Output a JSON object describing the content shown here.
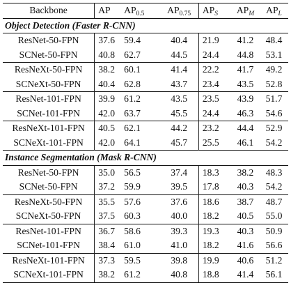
{
  "header": {
    "backbone": "Backbone",
    "ap": "AP",
    "ap50_base": "AP",
    "ap50_sub": "0.5",
    "ap75_base": "AP",
    "ap75_sub": "0.75",
    "aps_base": "AP",
    "aps_sub": "S",
    "apm_base": "AP",
    "apm_sub": "M",
    "apl_base": "AP",
    "apl_sub": "L"
  },
  "sections": [
    {
      "title": "Object Detection (Faster R-CNN)",
      "groups": [
        [
          {
            "backbone": "ResNet-50-FPN",
            "ap": "37.6",
            "ap50": "59.4",
            "ap75": "40.4",
            "aps": "21.9",
            "apm": "41.2",
            "apl": "48.4"
          },
          {
            "backbone": "SCNet-50-FPN",
            "ap": "40.8",
            "ap50": "62.7",
            "ap75": "44.5",
            "aps": "24.4",
            "apm": "44.8",
            "apl": "53.1"
          }
        ],
        [
          {
            "backbone": "ResNeXt-50-FPN",
            "ap": "38.2",
            "ap50": "60.1",
            "ap75": "41.4",
            "aps": "22.2",
            "apm": "41.7",
            "apl": "49.2"
          },
          {
            "backbone": "SCNeXt-50-FPN",
            "ap": "40.4",
            "ap50": "62.8",
            "ap75": "43.7",
            "aps": "23.4",
            "apm": "43.5",
            "apl": "52.8"
          }
        ],
        [
          {
            "backbone": "ResNet-101-FPN",
            "ap": "39.9",
            "ap50": "61.2",
            "ap75": "43.5",
            "aps": "23.5",
            "apm": "43.9",
            "apl": "51.7"
          },
          {
            "backbone": "SCNet-101-FPN",
            "ap": "42.0",
            "ap50": "63.7",
            "ap75": "45.5",
            "aps": "24.4",
            "apm": "46.3",
            "apl": "54.6"
          }
        ],
        [
          {
            "backbone": "ResNeXt-101-FPN",
            "ap": "40.5",
            "ap50": "62.1",
            "ap75": "44.2",
            "aps": "23.2",
            "apm": "44.4",
            "apl": "52.9"
          },
          {
            "backbone": "SCNeXt-101-FPN",
            "ap": "42.0",
            "ap50": "64.1",
            "ap75": "45.7",
            "aps": "25.5",
            "apm": "46.1",
            "apl": "54.2"
          }
        ]
      ]
    },
    {
      "title": "Instance Segmentation (Mask R-CNN)",
      "groups": [
        [
          {
            "backbone": "ResNet-50-FPN",
            "ap": "35.0",
            "ap50": "56.5",
            "ap75": "37.4",
            "aps": "18.3",
            "apm": "38.2",
            "apl": "48.3"
          },
          {
            "backbone": "SCNet-50-FPN",
            "ap": "37.2",
            "ap50": "59.9",
            "ap75": "39.5",
            "aps": "17.8",
            "apm": "40.3",
            "apl": "54.2"
          }
        ],
        [
          {
            "backbone": "ResNeXt-50-FPN",
            "ap": "35.5",
            "ap50": "57.6",
            "ap75": "37.6",
            "aps": "18.6",
            "apm": "38.7",
            "apl": "48.7"
          },
          {
            "backbone": "SCNeXt-50-FPN",
            "ap": "37.5",
            "ap50": "60.3",
            "ap75": "40.0",
            "aps": "18.2",
            "apm": "40.5",
            "apl": "55.0"
          }
        ],
        [
          {
            "backbone": "ResNet-101-FPN",
            "ap": "36.7",
            "ap50": "58.6",
            "ap75": "39.3",
            "aps": "19.3",
            "apm": "40.3",
            "apl": "50.9"
          },
          {
            "backbone": "SCNet-101-FPN",
            "ap": "38.4",
            "ap50": "61.0",
            "ap75": "41.0",
            "aps": "18.2",
            "apm": "41.6",
            "apl": "56.6"
          }
        ],
        [
          {
            "backbone": "ResNeXt-101-FPN",
            "ap": "37.3",
            "ap50": "59.5",
            "ap75": "39.8",
            "aps": "19.9",
            "apm": "40.6",
            "apl": "51.2"
          },
          {
            "backbone": "SCNeXt-101-FPN",
            "ap": "38.2",
            "ap50": "61.2",
            "ap75": "40.8",
            "aps": "18.8",
            "apm": "41.4",
            "apl": "56.1"
          }
        ]
      ]
    }
  ]
}
